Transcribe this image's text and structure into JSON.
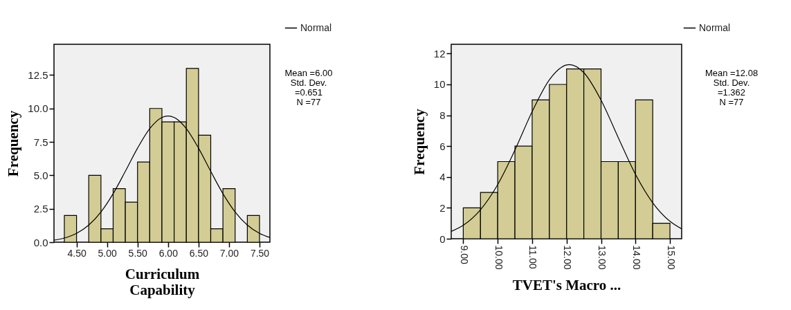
{
  "chart_data": [
    {
      "type": "histogram",
      "xlabel": "Curriculum Capability",
      "ylabel": "Frequency",
      "bins": [
        4.3,
        4.5,
        4.7,
        4.9,
        5.1,
        5.3,
        5.5,
        5.7,
        5.9,
        6.1,
        6.3,
        6.5,
        6.7,
        6.9,
        7.1,
        7.3,
        7.5
      ],
      "values": [
        2,
        0,
        5,
        1,
        4,
        3,
        6,
        10,
        9,
        9,
        13,
        8,
        1,
        4,
        0,
        2
      ],
      "color": "#d3cd95",
      "series": [
        {
          "type": "line",
          "name": "Normal",
          "color": "#000000",
          "x": [
            4.13,
            4.3,
            4.5,
            4.7,
            4.9,
            5.1,
            5.3,
            5.5,
            5.7,
            5.9,
            6.0,
            6.1,
            6.3,
            6.5,
            6.7,
            6.9,
            7.1,
            7.3,
            7.5,
            7.67
          ],
          "values": [
            0.15,
            0.31,
            0.66,
            1.28,
            2.26,
            3.63,
            5.3,
            7.03,
            8.49,
            9.33,
            9.44,
            9.33,
            8.49,
            7.03,
            5.3,
            3.63,
            2.26,
            1.28,
            0.66,
            0.35
          ]
        }
      ],
      "xlim": [
        4.13,
        7.67
      ],
      "xticks": [
        {
          "value": 4.5,
          "label": "4.50"
        },
        {
          "value": 5,
          "label": "5.00"
        },
        {
          "value": 5.5,
          "label": "5.50"
        },
        {
          "value": 6,
          "label": "6.00"
        },
        {
          "value": 6.5,
          "label": "6.50"
        },
        {
          "value": 7,
          "label": "7.00"
        },
        {
          "value": 7.5,
          "label": "7.50"
        }
      ],
      "ylim": [
        0,
        14.8
      ],
      "yticks": [
        {
          "value": 0,
          "label": "0.0"
        },
        2.5,
        {
          "value": 5,
          "label": "5.0"
        },
        7.5,
        {
          "value": 10,
          "label": "10.0"
        },
        12.5
      ],
      "grid": false,
      "legend": "top right",
      "annotations": [
        "Mean =6.00",
        "Std. Dev.",
        "=0.651",
        "N =77"
      ]
    },
    {
      "type": "histogram",
      "xlabel": "TVET's Macro ...",
      "ylabel": "Frequency",
      "bins": [
        9,
        9.5,
        10,
        10.5,
        11,
        11.5,
        12,
        12.5,
        13,
        13.5,
        14,
        14.5,
        15
      ],
      "values": [
        2,
        3,
        5,
        6,
        9,
        10,
        11,
        11,
        5,
        5,
        9,
        1
      ],
      "color": "#d3cd95",
      "series": [
        {
          "type": "line",
          "name": "Normal",
          "color": "#000000",
          "x": [
            8.65,
            9,
            9.5,
            10,
            10.5,
            11,
            11.5,
            12,
            12.08,
            12.5,
            13,
            13.5,
            14,
            14.5,
            15,
            15.34
          ],
          "values": [
            0.47,
            0.87,
            1.88,
            3.51,
            5.75,
            8.24,
            10.3,
            11.26,
            11.28,
            10.76,
            8.98,
            6.55,
            4.17,
            2.33,
            1.13,
            0.64
          ]
        }
      ],
      "xlim": [
        8.65,
        15.34
      ],
      "xticks": [
        {
          "value": 9,
          "label": "9.00"
        },
        {
          "value": 10,
          "label": "10.00"
        },
        {
          "value": 11,
          "label": "11.00"
        },
        {
          "value": 12,
          "label": "12.00"
        },
        {
          "value": 13,
          "label": "13.00"
        },
        {
          "value": 14,
          "label": "14.00"
        },
        {
          "value": 15,
          "label": "15.00"
        }
      ],
      "ylim": [
        0,
        12.6
      ],
      "yticks": [
        0,
        2,
        4,
        6,
        8,
        10,
        12
      ],
      "grid": false,
      "legend": "top right",
      "annotations": [
        "Mean =12.08",
        "Std. Dev.",
        "=1.362",
        "N =77"
      ]
    }
  ]
}
